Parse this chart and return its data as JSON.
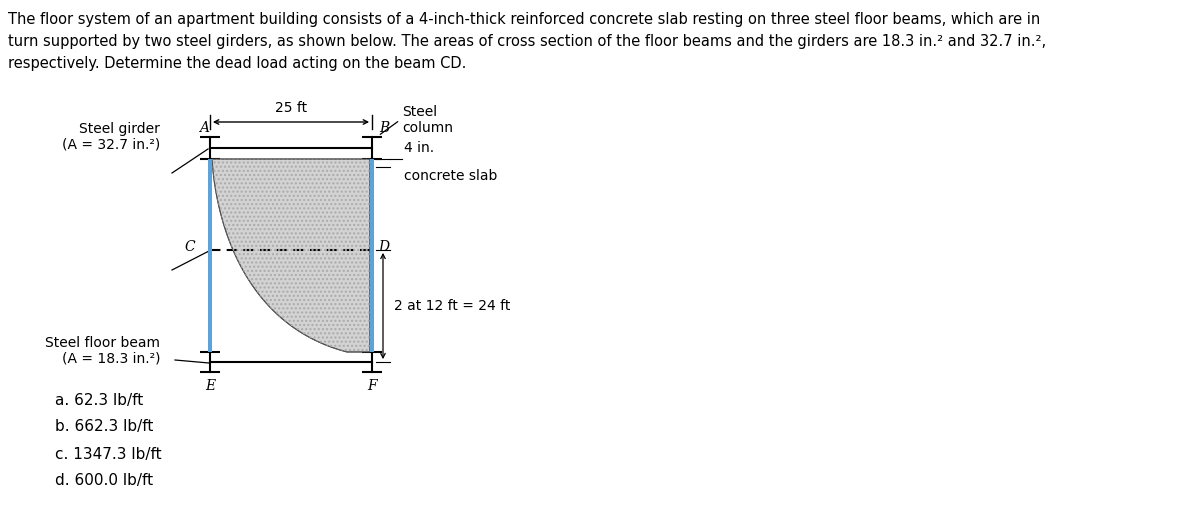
{
  "title_text_line1": "The floor system of an apartment building consists of a 4-inch-thick reinforced concrete slab resting on three steel floor beams, which are in",
  "title_text_line2": "turn supported by two steel girders, as shown below. The areas of cross section of the floor beams and the girders are 18.3 in.² and 32.7 in.²,",
  "title_text_line3": "respectively. Determine the dead load acting on the beam CD.",
  "label_steel_girder": "Steel girder",
  "label_steel_girder2": "(A = 32.7 in.²)",
  "label_steel_floor_beam": "Steel floor beam",
  "label_steel_floor_beam2": "(A = 18.3 in.²)",
  "label_steel_column": "Steel",
  "label_steel_column2": "column",
  "label_4in": "4 in.",
  "label_concrete": "concrete slab",
  "label_span": "2 at 12 ft = 24 ft",
  "label_25ft": "25 ft",
  "point_A": "A",
  "point_B": "B",
  "point_C": "C",
  "point_D": "D",
  "point_E": "E",
  "point_F": "F",
  "choices": [
    "a. 62.3 lb/ft",
    "b. 662.3 lb/ft",
    "c. 1347.3 lb/ft",
    "d. 600.0 lb/ft"
  ],
  "bg_color": "#ffffff",
  "slab_fill_color": "#d3d3d3",
  "beam_color": "#5ba3d9",
  "line_color": "#000000",
  "title_fontsize": 10.5,
  "diagram_fontsize": 10,
  "choices_fontsize": 11
}
